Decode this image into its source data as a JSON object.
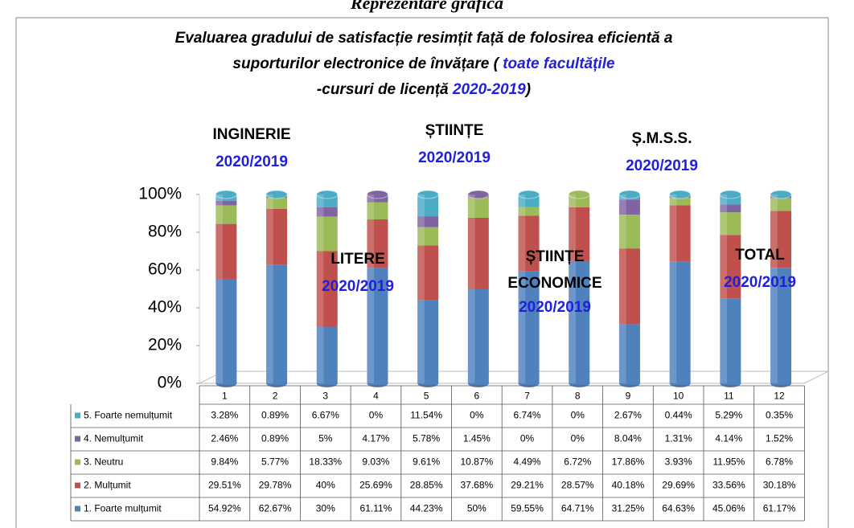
{
  "chart_data": {
    "type": "stacked_bar",
    "heading": "Reprezentare grafică",
    "title_lines": [
      [
        {
          "text": "Evaluarea gradului de satisfacție resimțit față de folosirea eficientă a",
          "highlight": false
        }
      ],
      [
        {
          "text": "suporturilor electronice de învățare ( ",
          "highlight": false
        },
        {
          "text": "toate facultățile",
          "highlight": true
        }
      ],
      [
        {
          "text": "-cursuri de licență ",
          "highlight": false
        },
        {
          "text": "2020-2019",
          "highlight": true
        },
        {
          "text": ")",
          "highlight": false
        }
      ]
    ],
    "annotations": [
      {
        "lines": [
          "INGINERIE"
        ],
        "year": "2020/2019"
      },
      {
        "lines": [
          "ȘTIINȚE"
        ],
        "year": "2020/2019"
      },
      {
        "lines": [
          "Ș.M.S.S."
        ],
        "year": "2020/2019"
      },
      {
        "lines": [
          "LITERE"
        ],
        "year": "2020/2019"
      },
      {
        "lines": [
          "ȘTIINȚE",
          "ECONOMICE"
        ],
        "year": "2020/2019"
      },
      {
        "lines": [
          "TOTAL"
        ],
        "year": "2020/2019"
      }
    ],
    "highlight_color": "#1f1fdf",
    "categories": [
      "1",
      "2",
      "3",
      "4",
      "5",
      "6",
      "7",
      "8",
      "9",
      "10",
      "11",
      "12"
    ],
    "series": [
      {
        "name": "1. Foarte mulțumit",
        "color": "#4f81bd",
        "values": [
          54.92,
          62.67,
          30,
          61.11,
          44.23,
          50,
          59.55,
          64.71,
          31.25,
          64.63,
          45.06,
          61.17
        ],
        "value_labels": [
          "54.92%",
          "62.67%",
          "30%",
          "61.11%",
          "44.23%",
          "50%",
          "59.55%",
          "64.71%",
          "31.25%",
          "64.63%",
          "45.06%",
          "61.17%"
        ]
      },
      {
        "name": "2. Mulțumit",
        "color": "#c0504d",
        "values": [
          29.51,
          29.78,
          40,
          25.69,
          28.85,
          37.68,
          29.21,
          28.57,
          40.18,
          29.69,
          33.56,
          30.18
        ],
        "value_labels": [
          "29.51%",
          "29.78%",
          "40%",
          "25.69%",
          "28.85%",
          "37.68%",
          "29.21%",
          "28.57%",
          "40.18%",
          "29.69%",
          "33.56%",
          "30.18%"
        ]
      },
      {
        "name": "3. Neutru",
        "color": "#9bbb59",
        "values": [
          9.84,
          5.77,
          18.33,
          9.03,
          9.61,
          10.87,
          4.49,
          6.72,
          17.86,
          3.93,
          11.95,
          6.78
        ],
        "value_labels": [
          "9.84%",
          "5.77%",
          "18.33%",
          "9.03%",
          "9.61%",
          "10.87%",
          "4.49%",
          "6.72%",
          "17.86%",
          "3.93%",
          "11.95%",
          "6.78%"
        ]
      },
      {
        "name": "4. Nemulțumit",
        "color": "#8064a2",
        "values": [
          2.46,
          0.89,
          5,
          4.17,
          5.78,
          1.45,
          0,
          0,
          8.04,
          1.31,
          4.14,
          1.52
        ],
        "value_labels": [
          "2.46%",
          "0.89%",
          "5%",
          "4.17%",
          "5.78%",
          "1.45%",
          "0%",
          "0%",
          "8.04%",
          "1.31%",
          "4.14%",
          "1.52%"
        ]
      },
      {
        "name": "5. Foarte nemulțumit",
        "color": "#4bacc6",
        "values": [
          3.28,
          0.89,
          6.67,
          0,
          11.54,
          0,
          6.74,
          0,
          2.67,
          0.44,
          5.29,
          0.35
        ],
        "value_labels": [
          "3.28%",
          "0.89%",
          "6.67%",
          "0%",
          "11.54%",
          "0%",
          "6.74%",
          "0%",
          "2.67%",
          "0.44%",
          "5.29%",
          "0.35%"
        ]
      }
    ],
    "ylim": [
      0,
      100
    ],
    "yticks": [
      {
        "value": 0,
        "label": "0%"
      },
      {
        "value": 20,
        "label": "20%"
      },
      {
        "value": 40,
        "label": "40%"
      },
      {
        "value": 60,
        "label": "60%"
      },
      {
        "value": 80,
        "label": "80%"
      },
      {
        "value": 100,
        "label": "100%"
      }
    ],
    "grid": false
  }
}
